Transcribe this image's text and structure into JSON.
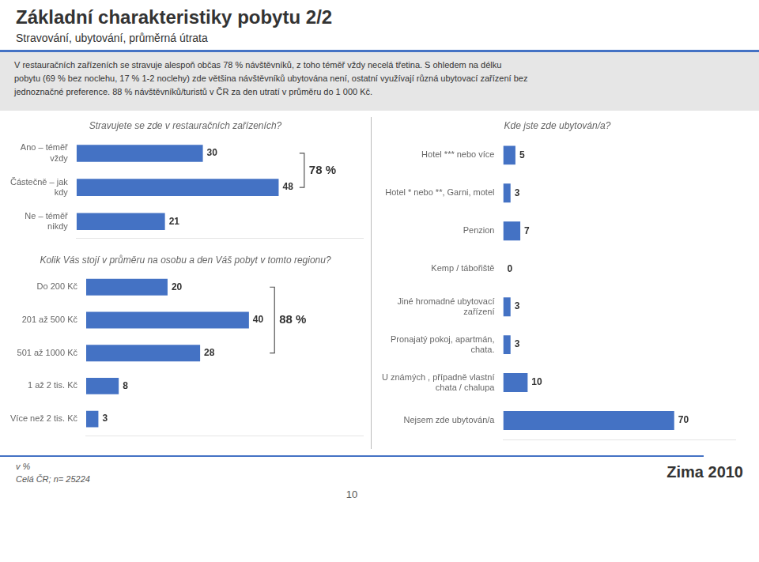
{
  "title": "Základní charakteristiky pobytu 2/2",
  "subtitle": "Stravování, ubytování, průměrná útrata",
  "annotations": [
    "V restauračních zařízeních se stravuje alespoň občas 78 % návštěvníků, z toho téměř vždy necelá třetina. S ohledem na délku\npobytu (69 % bez noclehu, 17 % 1-2 noclehy) zde většina návštěvníků ubytována není, ostatní využívají různá ubytovací zařízení bez\njednoznačné preference. 88 % návštěvníků/turistů v ČR za den utratí v průměru do 1 000 Kč.",
    "v %",
    "Celá ČR; n=  25224",
    "10",
    "Zima 2010"
  ],
  "chart_data": [
    {
      "type": "bar",
      "orientation": "horizontal",
      "title": "Stravujete se zde v restauračních zařízeních?",
      "categories": [
        "Ano – téměř\nvždy",
        "Částečně – jak\nkdy",
        "Ne – téměř\nnikdy"
      ],
      "values": [
        30,
        48,
        21
      ],
      "color": "#4472C4",
      "xlim": [
        0,
        68
      ],
      "grid": false,
      "data_labels": true,
      "tick_labels": "y",
      "annotations": [
        {
          "text": "78 %",
          "categories": [
            "Ano – téměř\nvždy",
            "Částečně – jak\nkdy"
          ]
        }
      ]
    },
    {
      "type": "bar",
      "orientation": "horizontal",
      "title": "Kolik Vás stojí v průměru na osobu a den Váš pobyt v tomto regionu?",
      "categories": [
        "Do 200 Kč",
        "201 až 500 Kč",
        "501 až 1000 Kč",
        "1 až 2 tis. Kč",
        "Více než 2 tis. Kč"
      ],
      "values": [
        20,
        40,
        28,
        8,
        3
      ],
      "color": "#4472C4",
      "xlim": [
        0,
        68
      ],
      "grid": false,
      "data_labels": true,
      "tick_labels": "y",
      "annotations": [
        {
          "text": "88 %",
          "categories": [
            "Do 200 Kč",
            "501 až 1000 Kč"
          ]
        }
      ]
    },
    {
      "type": "bar",
      "orientation": "horizontal",
      "title": "Kde jste zde ubytován/a?",
      "categories": [
        "Hotel *** nebo více",
        "Hotel * nebo **, Garni, motel",
        "Penzion",
        "Kemp / tábořiště",
        "Jiné hromadné ubytovací\nzařízení",
        "Pronajatý pokoj, apartmán,\nchata.",
        "U známých , případně vlastní\nchata / chalupa",
        "Nejsem zde ubytován/a"
      ],
      "values": [
        5,
        3,
        7,
        0,
        3,
        3,
        10,
        70
      ],
      "color": "#4472C4",
      "xlim": [
        0,
        95
      ],
      "grid": false,
      "data_labels": true,
      "tick_labels": "y"
    }
  ]
}
